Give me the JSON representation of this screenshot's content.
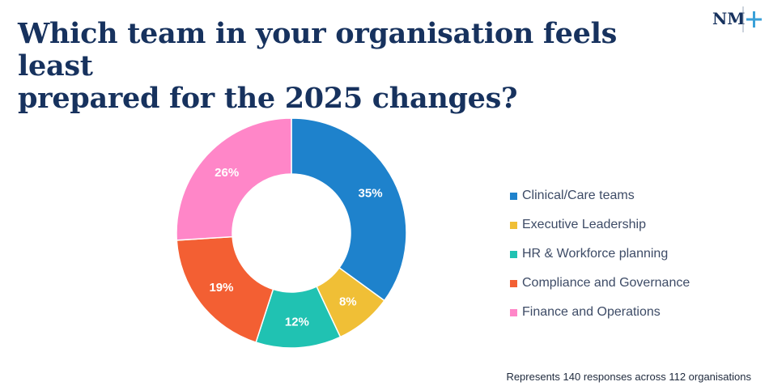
{
  "title_lines": [
    "Which team in your organisation feels least",
    "prepared for the 2025 changes?"
  ],
  "logo": {
    "text": "NM",
    "icon": "plus-icon",
    "color": "#17325e",
    "accent": "#3aa0d8"
  },
  "footnote": "Represents 140 responses across 112 organisations",
  "chart_data": {
    "type": "pie",
    "donut": true,
    "categories": [
      "Clinical/Care teams",
      "Executive Leadership",
      "HR & Workforce planning",
      "Compliance and Governance",
      "Finance and Operations"
    ],
    "values": [
      35,
      8,
      12,
      19,
      26
    ],
    "labels": [
      "35%",
      "8%",
      "12%",
      "19%",
      "26%"
    ],
    "colors": [
      "#1e82cc",
      "#f0bf36",
      "#20c2b2",
      "#f35f33",
      "#ff86c8"
    ],
    "legend_position": "right"
  }
}
